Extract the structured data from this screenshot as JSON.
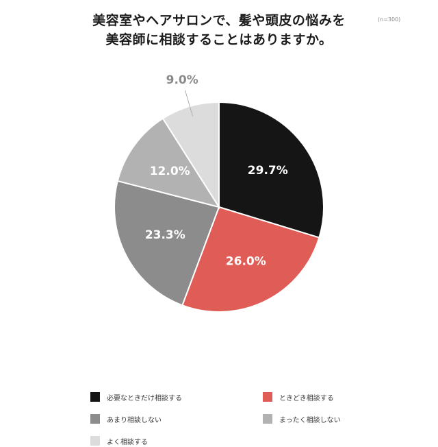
{
  "chart_data": {
    "type": "pie",
    "title_lines": [
      "美容室やヘアサロンで、髪や頭皮の悩みを",
      "美容師に相談することはありますか。"
    ],
    "note": "(n=300)",
    "slices": [
      {
        "label": "必要なときだけ相談する",
        "value": 29.7,
        "display": "29.7%",
        "color": "#151515",
        "label_color": "#ffffff"
      },
      {
        "label": "ときどき相談する",
        "value": 26.0,
        "display": "26.0%",
        "color": "#e05c57",
        "label_color": "#ffffff"
      },
      {
        "label": "あまり相談しない",
        "value": 23.3,
        "display": "23.3%",
        "color": "#8c8c8c",
        "label_color": "#ffffff"
      },
      {
        "label": "まったく相談しない",
        "value": 12.0,
        "display": "12.0%",
        "color": "#b2b2b2",
        "label_color": "#ffffff"
      },
      {
        "label": "よく相談する",
        "value": 9.0,
        "display": "9.0%",
        "color": "#dcdcdc",
        "label_color": "#8a8a8a"
      }
    ],
    "legend_placement": "bottom"
  }
}
